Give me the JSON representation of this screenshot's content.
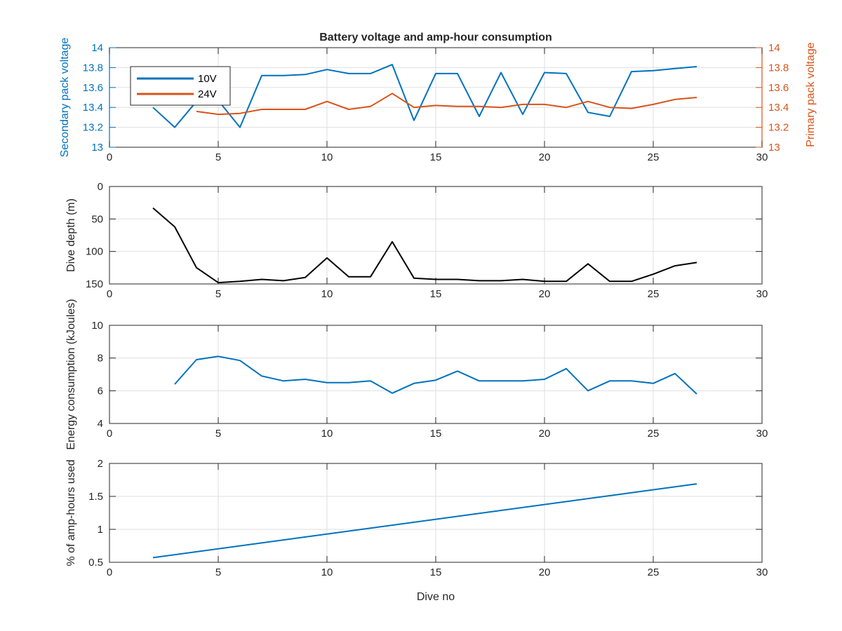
{
  "chart_data": [
    {
      "type": "line",
      "title": "Battery voltage and amp-hour consumption",
      "xlabel": "",
      "ylabel": "Secondary pack voltage",
      "ylabel_right": "Primary pack voltage",
      "xlim": [
        0,
        30
      ],
      "ylim": [
        13,
        14
      ],
      "ylim_right": [
        13,
        14
      ],
      "x_ticks": [
        "0",
        "5",
        "10",
        "15",
        "20",
        "25",
        "30"
      ],
      "y_ticks": [
        "13",
        "13.2",
        "13.4",
        "13.6",
        "13.8",
        "14"
      ],
      "y_ticks_right": [
        "13",
        "13.2",
        "13.4",
        "13.6",
        "13.8",
        "14"
      ],
      "grid": true,
      "legend_position": "top-left",
      "left_axis_color": "#0072bd",
      "right_axis_color": "#d95319",
      "series": [
        {
          "name": "10V",
          "axis": "left",
          "color": "#0072bd",
          "x": [
            2,
            3,
            4,
            5,
            6,
            7,
            8,
            9,
            10,
            11,
            12,
            13,
            14,
            15,
            16,
            17,
            18,
            19,
            20,
            21,
            22,
            23,
            24,
            25,
            26,
            27
          ],
          "y": [
            13.4,
            13.2,
            13.46,
            13.47,
            13.2,
            13.72,
            13.72,
            13.73,
            13.78,
            13.74,
            13.74,
            13.83,
            13.27,
            13.74,
            13.74,
            13.31,
            13.75,
            13.33,
            13.75,
            13.74,
            13.35,
            13.31,
            13.76,
            13.77,
            13.79,
            13.81
          ]
        },
        {
          "name": "24V",
          "axis": "right",
          "color": "#d95319",
          "x": [
            4,
            5,
            6,
            7,
            8,
            9,
            10,
            11,
            12,
            13,
            14,
            15,
            16,
            17,
            18,
            19,
            20,
            21,
            22,
            23,
            24,
            25,
            26,
            27
          ],
          "y": [
            13.36,
            13.33,
            13.34,
            13.38,
            13.38,
            13.38,
            13.46,
            13.38,
            13.41,
            13.54,
            13.4,
            13.42,
            13.41,
            13.41,
            13.4,
            13.43,
            13.43,
            13.4,
            13.46,
            13.4,
            13.39,
            13.43,
            13.48,
            13.5
          ]
        }
      ]
    },
    {
      "type": "line",
      "title": "",
      "xlabel": "",
      "ylabel": "Dive depth (m)",
      "xlim": [
        0,
        30
      ],
      "ylim": [
        0,
        150
      ],
      "y_reversed": true,
      "x_ticks": [
        "0",
        "5",
        "10",
        "15",
        "20",
        "25",
        "30"
      ],
      "y_ticks": [
        "0",
        "50",
        "100",
        "150"
      ],
      "grid": true,
      "series": [
        {
          "color": "#000000",
          "x": [
            2,
            3,
            4,
            5,
            6,
            7,
            8,
            9,
            10,
            11,
            12,
            13,
            14,
            15,
            16,
            17,
            18,
            19,
            20,
            21,
            22,
            23,
            24,
            25,
            26,
            27
          ],
          "y": [
            33,
            62,
            125,
            148,
            146,
            143,
            145,
            140,
            110,
            139,
            139,
            85,
            141,
            143,
            143,
            145,
            145,
            143,
            146,
            146,
            119,
            146,
            146,
            135,
            122,
            117
          ]
        }
      ]
    },
    {
      "type": "line",
      "title": "",
      "xlabel": "",
      "ylabel": "Energy consumption (kJoules)",
      "xlim": [
        0,
        30
      ],
      "ylim": [
        4,
        10
      ],
      "x_ticks": [
        "0",
        "5",
        "10",
        "15",
        "20",
        "25",
        "30"
      ],
      "y_ticks": [
        "4",
        "6",
        "8",
        "10"
      ],
      "grid": true,
      "series": [
        {
          "color": "#0072bd",
          "x": [
            3,
            4,
            5,
            6,
            7,
            8,
            9,
            10,
            11,
            12,
            13,
            14,
            15,
            16,
            17,
            18,
            19,
            20,
            21,
            22,
            23,
            24,
            25,
            26,
            27
          ],
          "y": [
            6.4,
            7.9,
            8.1,
            7.85,
            6.9,
            6.6,
            6.7,
            6.5,
            6.5,
            6.6,
            5.85,
            6.45,
            6.65,
            7.2,
            6.6,
            6.6,
            6.6,
            6.7,
            7.35,
            6.0,
            6.6,
            6.6,
            6.45,
            7.05,
            5.8
          ]
        }
      ]
    },
    {
      "type": "line",
      "title": "",
      "xlabel": "Dive no",
      "ylabel": "% of amp-hours used",
      "xlim": [
        0,
        30
      ],
      "ylim": [
        0.5,
        2
      ],
      "x_ticks": [
        "0",
        "5",
        "10",
        "15",
        "20",
        "25",
        "30"
      ],
      "y_ticks": [
        "0.5",
        "1",
        "1.5",
        "2"
      ],
      "grid": true,
      "series": [
        {
          "color": "#0072bd",
          "x": [
            2,
            27
          ],
          "y": [
            0.57,
            1.69
          ]
        }
      ]
    }
  ]
}
